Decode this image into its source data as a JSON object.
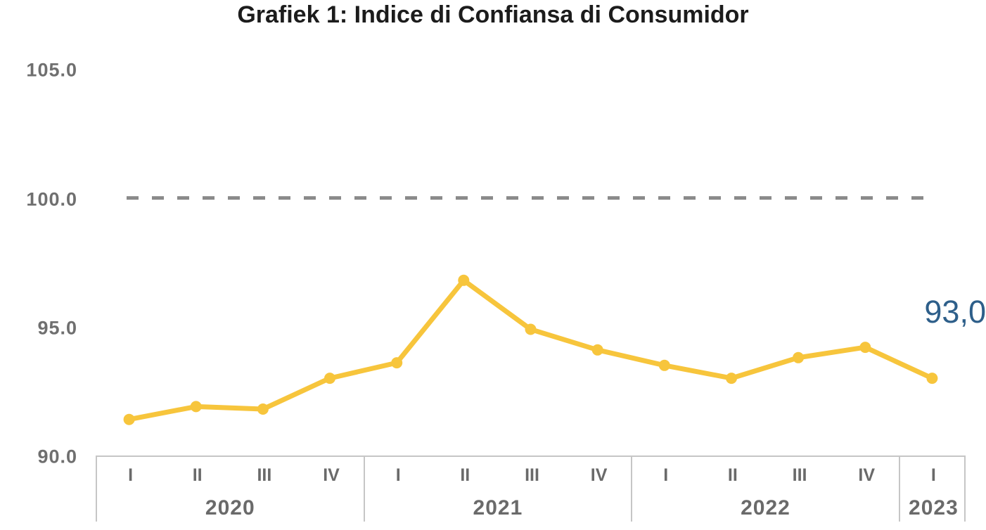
{
  "title": "Grafiek 1: Indice di Confiansa di Consumidor",
  "annotation": {
    "text": "93,0"
  },
  "colors": {
    "line": "#F7C53C",
    "marker": "#F7C53C",
    "reference_line": "#8A8A8A",
    "axis_text": "#6F6F6F",
    "title_text": "#1C1C1C",
    "band_border": "#C6C6C6",
    "annotation_text": "#2E5F8A"
  },
  "chart_data": {
    "type": "line",
    "title": "Grafiek 1: Indice di Confiansa di Consumidor",
    "xlabel": "",
    "ylabel": "",
    "ylim": [
      90,
      107
    ],
    "grid": false,
    "legend_position": "none",
    "y_ticks": [
      {
        "label": "105.0",
        "value": 105
      },
      {
        "label": "100.0",
        "value": 100
      },
      {
        "label": "95.0",
        "value": 95
      },
      {
        "label": "90.0",
        "value": 90
      }
    ],
    "reference_line": {
      "value": 100,
      "style": "dashed"
    },
    "x_groups": [
      {
        "year": "2020",
        "quarters": [
          "I",
          "II",
          "III",
          "IV"
        ]
      },
      {
        "year": "2021",
        "quarters": [
          "I",
          "II",
          "III",
          "IV"
        ]
      },
      {
        "year": "2022",
        "quarters": [
          "I",
          "II",
          "III",
          "IV"
        ]
      },
      {
        "year": "2023",
        "quarters": [
          "I"
        ]
      }
    ],
    "series": [
      {
        "name": "Indice di Confiansa di Consumidor",
        "values": [
          91.4,
          91.9,
          91.8,
          93.0,
          93.6,
          96.8,
          94.9,
          94.1,
          93.5,
          93.0,
          93.8,
          94.2,
          93.0
        ]
      }
    ],
    "last_point_label": "93,0"
  }
}
